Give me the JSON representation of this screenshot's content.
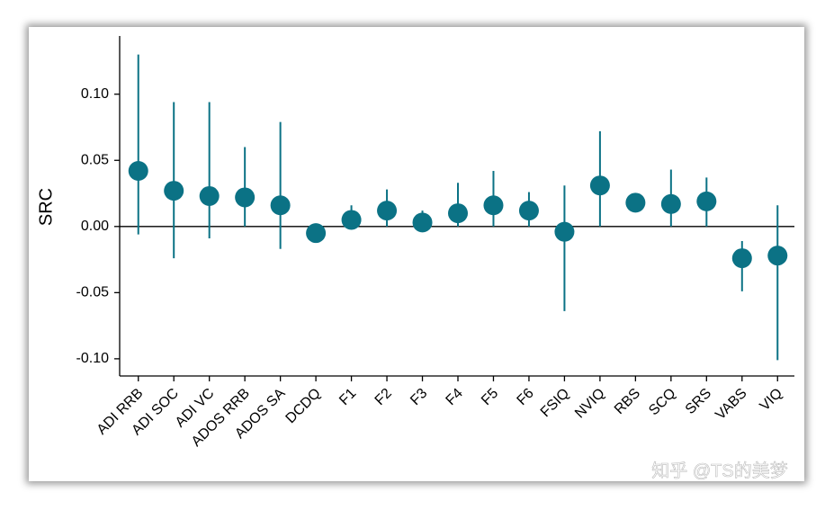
{
  "chart_data": {
    "type": "pointrange",
    "y_label": "SRC",
    "watermark": "知乎 @TS的美梦",
    "categories": [
      "ADI RRB",
      "ADI SOC",
      "ADI VC",
      "ADOS RRB",
      "ADOS SA",
      "DCDQ",
      "F1",
      "F2",
      "F3",
      "F4",
      "F5",
      "F6",
      "FSIQ",
      "NVIQ",
      "RBS",
      "SCQ",
      "SRS",
      "VABS",
      "VIQ"
    ],
    "category_colors": [
      "#000000",
      "#000000",
      "#000000",
      "#000000",
      "#000000",
      "#000000",
      "#000000",
      "#000000",
      "#000000",
      "#000000",
      "#000000",
      "#000000",
      "#000000",
      "#e8141b",
      "#e8141b",
      "#e8141b",
      "#e8141b",
      "#e8141b",
      "#e8141b"
    ],
    "values": [
      0.042,
      0.027,
      0.023,
      0.022,
      0.016,
      -0.005,
      0.005,
      0.012,
      0.003,
      0.01,
      0.016,
      0.012,
      -0.004,
      0.031,
      0.018,
      0.017,
      0.019,
      -0.024,
      -0.022
    ],
    "lower": [
      -0.006,
      -0.024,
      -0.009,
      0.0,
      -0.017,
      null,
      0.0,
      0.0,
      0.0,
      0.0,
      0.0,
      0.0,
      -0.064,
      0.0,
      null,
      0.0,
      0.0,
      -0.049,
      -0.101
    ],
    "upper": [
      0.13,
      0.094,
      0.094,
      0.06,
      0.079,
      null,
      0.016,
      0.028,
      0.012,
      0.033,
      0.042,
      0.026,
      0.031,
      0.072,
      null,
      0.043,
      0.037,
      -0.011,
      0.016
    ],
    "color": "#0b7285",
    "reference_line": 0,
    "ylim": [
      -0.113,
      0.144
    ],
    "yticks": [
      {
        "value": -0.1,
        "label": "-0.10"
      },
      -0.05,
      {
        "value": 0,
        "label": "0.00"
      },
      0.05,
      {
        "value": 0.1,
        "label": "0.10"
      }
    ]
  }
}
